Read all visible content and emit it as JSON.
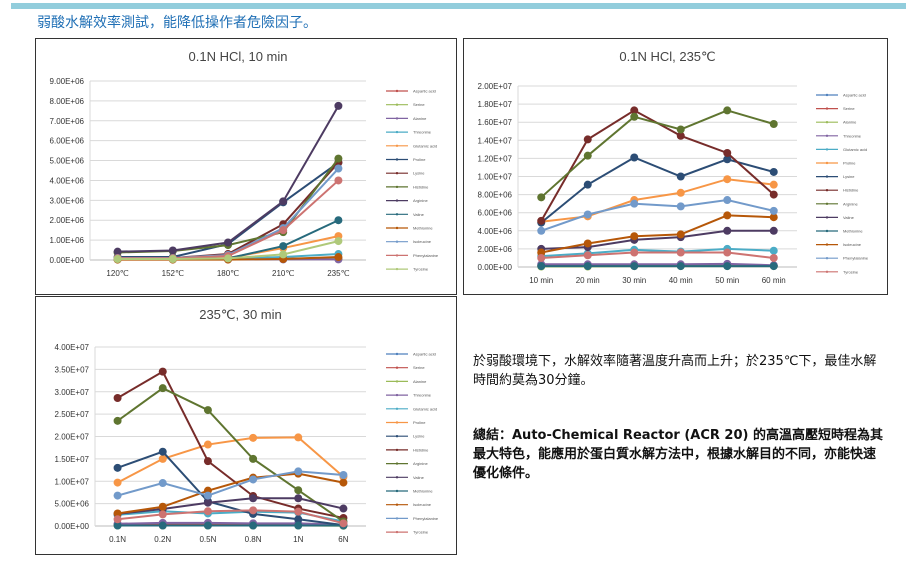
{
  "header": {
    "title": "弱酸水解效率測試，能降低操作者危險因子。",
    "bar_color": "#92CDDC",
    "title_color": "#1F6FB5"
  },
  "notes": {
    "observation": "於弱酸環境下，水解效率隨著溫度升高而上升；於235℃下，最佳水解時間約莫為30分鐘。",
    "summary": "總結：Auto-Chemical Reactor (ACR 20) 的高溫高壓短時程為其最大特色，能應用於蛋白質水解方法中，根據水解目的不同，亦能快速優化條件。"
  },
  "chart_data": [
    {
      "type": "line",
      "title": "0.1N HCl, 10 min",
      "xlabel": "",
      "ylabel": "",
      "categories": [
        "120℃",
        "152℃",
        "180℃",
        "210℃",
        "235℃"
      ],
      "ylim": [
        0,
        9000000
      ],
      "yticks": [
        "0.00E+00",
        "1.00E+06",
        "2.00E+06",
        "3.00E+06",
        "4.00E+06",
        "5.00E+06",
        "6.00E+06",
        "7.00E+06",
        "8.00E+06",
        "9.00E+06"
      ],
      "grid": true,
      "legend": "right",
      "series": [
        {
          "name": "Aspartic acid",
          "color": "#C0504D",
          "values": [
            50000,
            50000,
            50000,
            60000,
            80000
          ]
        },
        {
          "name": "Serine",
          "color": "#9BBB59",
          "values": [
            40000,
            40000,
            40000,
            40000,
            50000
          ]
        },
        {
          "name": "Alanine",
          "color": "#8064A2",
          "values": [
            30000,
            30000,
            30000,
            30000,
            30000
          ]
        },
        {
          "name": "Threonine",
          "color": "#4BACC6",
          "values": [
            60000,
            60000,
            70000,
            150000,
            300000
          ]
        },
        {
          "name": "Glutamic acid",
          "color": "#F79646",
          "values": [
            80000,
            80000,
            100000,
            600000,
            1200000
          ]
        },
        {
          "name": "Proline",
          "color": "#2C4D75",
          "values": [
            150000,
            150000,
            800000,
            2900000,
            4900000
          ]
        },
        {
          "name": "Lysine",
          "color": "#772C2A",
          "values": [
            100000,
            100000,
            300000,
            1800000,
            4900000
          ]
        },
        {
          "name": "Histidine",
          "color": "#5F7530",
          "values": [
            380000,
            450000,
            750000,
            1400000,
            5100000
          ]
        },
        {
          "name": "Arginine",
          "color": "#4D3B62",
          "values": [
            420000,
            480000,
            880000,
            2950000,
            7750000
          ]
        },
        {
          "name": "Valine",
          "color": "#276A7C",
          "values": [
            60000,
            60000,
            80000,
            700000,
            2000000
          ]
        },
        {
          "name": "Methionine",
          "color": "#B65708",
          "values": [
            20000,
            20000,
            20000,
            50000,
            150000
          ]
        },
        {
          "name": "Isoleucine",
          "color": "#729ACA",
          "values": [
            100000,
            100000,
            250000,
            1600000,
            4600000
          ]
        },
        {
          "name": "Phenylalanine",
          "color": "#CD7371",
          "values": [
            90000,
            90000,
            200000,
            1500000,
            4000000
          ]
        },
        {
          "name": "Tyrosine",
          "color": "#AFC97A",
          "values": [
            50000,
            50000,
            80000,
            280000,
            950000
          ]
        }
      ]
    },
    {
      "type": "line",
      "title": "0.1N HCl, 235℃",
      "xlabel": "",
      "ylabel": "",
      "categories": [
        "10  min",
        "20 min",
        "30 min",
        "40 min",
        "50 min",
        "60 min"
      ],
      "ylim": [
        0,
        20000000
      ],
      "yticks": [
        "0.00E+00",
        "2.00E+06",
        "4.00E+06",
        "6.00E+06",
        "8.00E+06",
        "1.00E+07",
        "1.20E+07",
        "1.40E+07",
        "1.60E+07",
        "1.80E+07",
        "2.00E+07"
      ],
      "grid": true,
      "legend": "right",
      "series": [
        {
          "name": "Aspartic acid",
          "color": "#4F81BD",
          "values": [
            200000,
            200000,
            200000,
            200000,
            200000,
            150000
          ]
        },
        {
          "name": "Serine",
          "color": "#C0504D",
          "values": [
            150000,
            150000,
            150000,
            150000,
            150000,
            150000
          ]
        },
        {
          "name": "Alanine",
          "color": "#9BBB59",
          "values": [
            50000,
            50000,
            100000,
            100000,
            100000,
            100000
          ]
        },
        {
          "name": "Threonine",
          "color": "#8064A2",
          "values": [
            300000,
            300000,
            300000,
            300000,
            350000,
            200000
          ]
        },
        {
          "name": "Glutamic acid",
          "color": "#4BACC6",
          "values": [
            1200000,
            1500000,
            1900000,
            1700000,
            2000000,
            1800000
          ]
        },
        {
          "name": "Proline",
          "color": "#F79646",
          "values": [
            5000000,
            5600000,
            7400000,
            8200000,
            9700000,
            9100000
          ]
        },
        {
          "name": "Lysine",
          "color": "#2C4D75",
          "values": [
            4900000,
            9100000,
            12100000,
            10000000,
            11900000,
            10500000
          ]
        },
        {
          "name": "Histidine",
          "color": "#772C2A",
          "values": [
            5100000,
            14100000,
            17300000,
            14500000,
            12600000,
            8000000
          ]
        },
        {
          "name": "Arginine",
          "color": "#5F7530",
          "values": [
            7700000,
            12300000,
            16600000,
            15200000,
            17300000,
            15800000
          ]
        },
        {
          "name": "Valine",
          "color": "#4D3B62",
          "values": [
            2000000,
            2200000,
            3000000,
            3300000,
            4000000,
            4000000
          ]
        },
        {
          "name": "Methionine",
          "color": "#276A7C",
          "values": [
            100000,
            100000,
            100000,
            100000,
            100000,
            100000
          ]
        },
        {
          "name": "Isoleucine",
          "color": "#B65708",
          "values": [
            1600000,
            2600000,
            3400000,
            3600000,
            5700000,
            5500000
          ]
        },
        {
          "name": "Phenylalanine",
          "color": "#729ACA",
          "values": [
            4000000,
            5800000,
            7000000,
            6700000,
            7400000,
            6200000
          ]
        },
        {
          "name": "Tyrosine",
          "color": "#CD7371",
          "values": [
            1000000,
            1300000,
            1600000,
            1600000,
            1600000,
            1000000
          ]
        }
      ]
    },
    {
      "type": "line",
      "title": "235℃, 30 min",
      "xlabel": "",
      "ylabel": "",
      "categories": [
        "0.1N",
        "0.2N",
        "0.5N",
        "0.8N",
        "1N",
        "6N"
      ],
      "ylim": [
        0,
        40000000
      ],
      "yticks": [
        "0.00E+00",
        "5.00E+06",
        "1.00E+07",
        "1.50E+07",
        "2.00E+07",
        "2.50E+07",
        "3.00E+07",
        "3.50E+07",
        "4.00E+07"
      ],
      "grid": true,
      "legend": "right",
      "series": [
        {
          "name": "Aspartic acid",
          "color": "#4F81BD",
          "values": [
            400000,
            500000,
            500000,
            500000,
            500000,
            200000
          ]
        },
        {
          "name": "Serine",
          "color": "#C0504D",
          "values": [
            300000,
            300000,
            300000,
            300000,
            300000,
            150000
          ]
        },
        {
          "name": "Alanine",
          "color": "#9BBB59",
          "values": [
            100000,
            100000,
            100000,
            100000,
            100000,
            50000
          ]
        },
        {
          "name": "Threonine",
          "color": "#8064A2",
          "values": [
            500000,
            700000,
            700000,
            600000,
            600000,
            300000
          ]
        },
        {
          "name": "Glutamic acid",
          "color": "#4BACC6",
          "values": [
            2500000,
            3300000,
            2800000,
            3200000,
            3000000,
            1000000
          ]
        },
        {
          "name": "Proline",
          "color": "#F79646",
          "values": [
            9700000,
            15000000,
            18200000,
            19700000,
            19800000,
            11000000
          ]
        },
        {
          "name": "Lysine",
          "color": "#2C4D75",
          "values": [
            13000000,
            16600000,
            5500000,
            2700000,
            1500000,
            200000
          ]
        },
        {
          "name": "Histidine",
          "color": "#772C2A",
          "values": [
            28600000,
            34500000,
            14500000,
            6700000,
            3900000,
            1800000
          ]
        },
        {
          "name": "Arginine",
          "color": "#5F7530",
          "values": [
            23500000,
            30800000,
            25900000,
            15000000,
            8000000,
            1000000
          ]
        },
        {
          "name": "Valine",
          "color": "#4D3B62",
          "values": [
            2700000,
            3800000,
            5200000,
            6200000,
            6200000,
            3900000
          ]
        },
        {
          "name": "Methionine",
          "color": "#276A7C",
          "values": [
            100000,
            100000,
            100000,
            100000,
            100000,
            100000
          ]
        },
        {
          "name": "Isoleucine",
          "color": "#B65708",
          "values": [
            2800000,
            4300000,
            7900000,
            10800000,
            11700000,
            9700000
          ]
        },
        {
          "name": "Phenylalanine",
          "color": "#729ACA",
          "values": [
            6800000,
            9600000,
            6800000,
            10400000,
            12200000,
            11400000
          ]
        },
        {
          "name": "Tyrosine",
          "color": "#CD7371",
          "values": [
            1500000,
            2600000,
            3300000,
            3500000,
            3200000,
            600000
          ]
        }
      ]
    }
  ]
}
